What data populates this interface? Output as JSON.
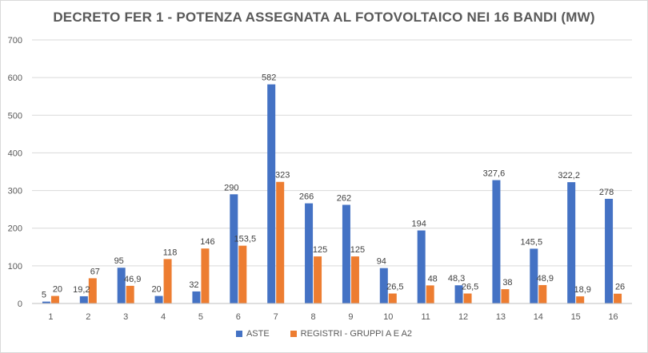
{
  "chart_data": {
    "type": "bar",
    "title": "DECRETO FER 1 - POTENZA ASSEGNATA AL FOTOVOLTAICO NEI 16 BANDI (MW)",
    "xlabel": "",
    "ylabel": "",
    "ylim": [
      0,
      700
    ],
    "yticks": [
      0,
      100,
      200,
      300,
      400,
      500,
      600,
      700
    ],
    "grid": true,
    "legend_position": "bottom",
    "categories": [
      "1",
      "2",
      "3",
      "4",
      "5",
      "6",
      "7",
      "8",
      "9",
      "10",
      "11",
      "12",
      "13",
      "14",
      "15",
      "16"
    ],
    "series": [
      {
        "name": "ASTE",
        "color": "#4472C4",
        "values": [
          5,
          19.2,
          95,
          20,
          32,
          290,
          582,
          266,
          262,
          94,
          194,
          48.3,
          327.6,
          145.5,
          322.2,
          278
        ],
        "labels": [
          "5",
          "19,2",
          "95",
          "20",
          "32",
          "290",
          "582",
          "266",
          "262",
          "94",
          "194",
          "48,3",
          "327,6",
          "145,5",
          "322,2",
          "278"
        ]
      },
      {
        "name": "REGISTRI - GRUPPI A E A2",
        "color": "#ED7D31",
        "values": [
          20,
          67,
          46.9,
          118,
          146,
          153.5,
          323,
          125,
          125,
          26.5,
          48,
          26.5,
          38,
          48.9,
          18.9,
          26
        ],
        "labels": [
          "20",
          "67",
          "46,9",
          "118",
          "146",
          "153,5",
          "323",
          "125",
          "125",
          "26,5",
          "48",
          "26,5",
          "38",
          "48,9",
          "18,9",
          "26"
        ]
      }
    ]
  }
}
